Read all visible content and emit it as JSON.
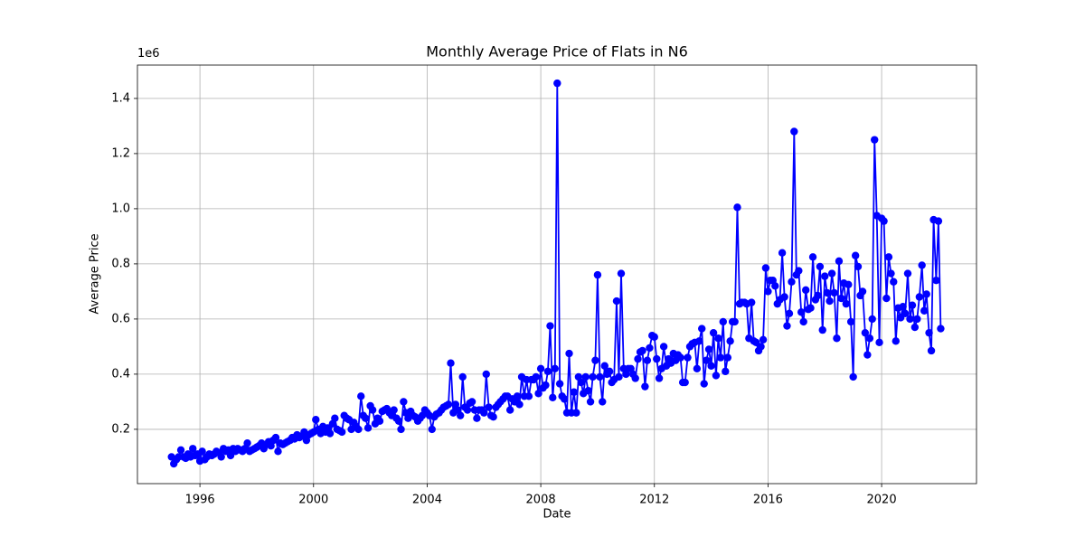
{
  "chart_data": {
    "type": "line",
    "title": "Monthly Average Price of Flats in N6",
    "x_label": "Date",
    "y_label": "Average Price",
    "y_offset_label": "1e6",
    "xlim": [
      1993.8,
      2023.34
    ],
    "xticks": [
      1996,
      2000,
      2004,
      2008,
      2012,
      2016,
      2020
    ],
    "ylim": [
      0.003,
      1.521
    ],
    "yticks": [
      0.2,
      0.4,
      0.6,
      0.8,
      {
        "value": 1,
        "label": "1.0"
      },
      1.2,
      1.4
    ],
    "grid": true,
    "series": [
      {
        "color": "#0000ff",
        "x": [
          1995.0,
          1995.08,
          1995.17,
          1995.25,
          1995.33,
          1995.42,
          1995.5,
          1995.58,
          1995.67,
          1995.75,
          1995.83,
          1995.92,
          1996.0,
          1996.08,
          1996.17,
          1996.25,
          1996.33,
          1996.42,
          1996.5,
          1996.58,
          1996.67,
          1996.75,
          1996.83,
          1996.92,
          1997.0,
          1997.08,
          1997.17,
          1997.25,
          1997.33,
          1997.42,
          1997.5,
          1997.58,
          1997.67,
          1997.75,
          1997.83,
          1997.92,
          1998.0,
          1998.08,
          1998.17,
          1998.25,
          1998.33,
          1998.42,
          1998.5,
          1998.58,
          1998.67,
          1998.75,
          1998.83,
          1998.92,
          1999.0,
          1999.08,
          1999.17,
          1999.25,
          1999.33,
          1999.42,
          1999.5,
          1999.58,
          1999.67,
          1999.75,
          1999.83,
          1999.92,
          2000.0,
          2000.08,
          2000.17,
          2000.25,
          2000.33,
          2000.42,
          2000.5,
          2000.58,
          2000.67,
          2000.75,
          2000.83,
          2000.92,
          2001.0,
          2001.08,
          2001.17,
          2001.25,
          2001.33,
          2001.42,
          2001.5,
          2001.58,
          2001.67,
          2001.75,
          2001.83,
          2001.92,
          2002.0,
          2002.08,
          2002.17,
          2002.25,
          2002.33,
          2002.42,
          2002.5,
          2002.58,
          2002.67,
          2002.75,
          2002.83,
          2002.92,
          2003.0,
          2003.08,
          2003.17,
          2003.25,
          2003.33,
          2003.42,
          2003.5,
          2003.58,
          2003.67,
          2003.75,
          2003.83,
          2003.92,
          2004.0,
          2004.08,
          2004.17,
          2004.25,
          2004.33,
          2004.42,
          2004.5,
          2004.58,
          2004.67,
          2004.75,
          2004.83,
          2004.92,
          2005.0,
          2005.08,
          2005.17,
          2005.25,
          2005.33,
          2005.42,
          2005.5,
          2005.58,
          2005.67,
          2005.75,
          2005.83,
          2005.92,
          2006.0,
          2006.08,
          2006.17,
          2006.25,
          2006.33,
          2006.42,
          2006.5,
          2006.58,
          2006.67,
          2006.75,
          2006.83,
          2006.92,
          2007.0,
          2007.08,
          2007.17,
          2007.25,
          2007.33,
          2007.42,
          2007.5,
          2007.58,
          2007.67,
          2007.75,
          2007.83,
          2007.92,
          2008.0,
          2008.08,
          2008.17,
          2008.25,
          2008.33,
          2008.42,
          2008.5,
          2008.58,
          2008.67,
          2008.75,
          2008.83,
          2008.92,
          2009.0,
          2009.08,
          2009.17,
          2009.25,
          2009.33,
          2009.42,
          2009.5,
          2009.58,
          2009.67,
          2009.75,
          2009.83,
          2009.92,
          2010.0,
          2010.08,
          2010.17,
          2010.25,
          2010.33,
          2010.42,
          2010.5,
          2010.58,
          2010.67,
          2010.75,
          2010.83,
          2010.92,
          2011.0,
          2011.08,
          2011.17,
          2011.25,
          2011.33,
          2011.42,
          2011.5,
          2011.58,
          2011.67,
          2011.75,
          2011.83,
          2011.92,
          2012.0,
          2012.08,
          2012.17,
          2012.25,
          2012.33,
          2012.42,
          2012.5,
          2012.58,
          2012.67,
          2012.75,
          2012.83,
          2012.92,
          2013.0,
          2013.08,
          2013.17,
          2013.25,
          2013.33,
          2013.42,
          2013.5,
          2013.58,
          2013.67,
          2013.75,
          2013.83,
          2013.92,
          2014.0,
          2014.08,
          2014.17,
          2014.25,
          2014.33,
          2014.42,
          2014.5,
          2014.58,
          2014.67,
          2014.75,
          2014.83,
          2014.92,
          2015.0,
          2015.08,
          2015.17,
          2015.25,
          2015.33,
          2015.42,
          2015.5,
          2015.58,
          2015.67,
          2015.75,
          2015.83,
          2015.92,
          2016.0,
          2016.08,
          2016.17,
          2016.25,
          2016.33,
          2016.42,
          2016.5,
          2016.58,
          2016.67,
          2016.75,
          2016.83,
          2016.92,
          2017.0,
          2017.08,
          2017.17,
          2017.25,
          2017.33,
          2017.42,
          2017.5,
          2017.58,
          2017.67,
          2017.75,
          2017.83,
          2017.92,
          2018.0,
          2018.08,
          2018.17,
          2018.25,
          2018.33,
          2018.42,
          2018.5,
          2018.58,
          2018.67,
          2018.75,
          2018.83,
          2018.92,
          2019.0,
          2019.08,
          2019.17,
          2019.25,
          2019.33,
          2019.42,
          2019.5,
          2019.58,
          2019.67,
          2019.75,
          2019.83,
          2019.92,
          2020.0,
          2020.08,
          2020.17,
          2020.25,
          2020.33,
          2020.42,
          2020.5,
          2020.58,
          2020.67,
          2020.75,
          2020.83,
          2020.92,
          2021.0,
          2021.08,
          2021.17,
          2021.25,
          2021.33,
          2021.42,
          2021.5,
          2021.58,
          2021.67,
          2021.75,
          2021.83,
          2021.92,
          2022.0,
          2022.08
        ],
        "values": [
          0.1,
          0.075,
          0.09,
          0.1,
          0.125,
          0.1,
          0.095,
          0.11,
          0.1,
          0.13,
          0.105,
          0.11,
          0.085,
          0.12,
          0.09,
          0.1,
          0.11,
          0.105,
          0.11,
          0.12,
          0.115,
          0.1,
          0.13,
          0.12,
          0.125,
          0.105,
          0.13,
          0.12,
          0.13,
          0.125,
          0.12,
          0.13,
          0.15,
          0.12,
          0.125,
          0.13,
          0.135,
          0.14,
          0.15,
          0.13,
          0.145,
          0.155,
          0.14,
          0.16,
          0.17,
          0.12,
          0.15,
          0.145,
          0.15,
          0.155,
          0.16,
          0.17,
          0.165,
          0.18,
          0.17,
          0.175,
          0.19,
          0.16,
          0.18,
          0.185,
          0.19,
          0.235,
          0.2,
          0.185,
          0.21,
          0.19,
          0.205,
          0.185,
          0.22,
          0.24,
          0.2,
          0.195,
          0.19,
          0.25,
          0.24,
          0.235,
          0.2,
          0.225,
          0.21,
          0.2,
          0.32,
          0.25,
          0.24,
          0.205,
          0.285,
          0.27,
          0.22,
          0.24,
          0.23,
          0.265,
          0.27,
          0.275,
          0.26,
          0.25,
          0.27,
          0.24,
          0.23,
          0.2,
          0.3,
          0.26,
          0.24,
          0.265,
          0.25,
          0.245,
          0.23,
          0.24,
          0.25,
          0.27,
          0.26,
          0.25,
          0.2,
          0.245,
          0.255,
          0.26,
          0.27,
          0.28,
          0.285,
          0.29,
          0.44,
          0.26,
          0.29,
          0.27,
          0.25,
          0.39,
          0.28,
          0.27,
          0.295,
          0.3,
          0.27,
          0.24,
          0.27,
          0.27,
          0.26,
          0.4,
          0.28,
          0.25,
          0.245,
          0.28,
          0.29,
          0.3,
          0.31,
          0.32,
          0.32,
          0.27,
          0.31,
          0.3,
          0.32,
          0.29,
          0.39,
          0.32,
          0.38,
          0.32,
          0.38,
          0.38,
          0.39,
          0.33,
          0.42,
          0.35,
          0.36,
          0.41,
          0.575,
          0.315,
          0.42,
          1.455,
          0.365,
          0.32,
          0.31,
          0.26,
          0.475,
          0.26,
          0.335,
          0.26,
          0.39,
          0.37,
          0.33,
          0.39,
          0.34,
          0.3,
          0.39,
          0.45,
          0.76,
          0.39,
          0.3,
          0.43,
          0.4,
          0.41,
          0.37,
          0.38,
          0.665,
          0.39,
          0.765,
          0.42,
          0.4,
          0.42,
          0.42,
          0.4,
          0.385,
          0.455,
          0.48,
          0.485,
          0.355,
          0.45,
          0.495,
          0.54,
          0.535,
          0.455,
          0.385,
          0.42,
          0.5,
          0.43,
          0.455,
          0.44,
          0.475,
          0.45,
          0.47,
          0.46,
          0.37,
          0.37,
          0.46,
          0.5,
          0.51,
          0.515,
          0.42,
          0.52,
          0.565,
          0.365,
          0.45,
          0.49,
          0.43,
          0.55,
          0.395,
          0.53,
          0.46,
          0.59,
          0.41,
          0.46,
          0.52,
          0.59,
          0.59,
          1.005,
          0.655,
          0.66,
          0.66,
          0.655,
          0.53,
          0.66,
          0.52,
          0.515,
          0.485,
          0.5,
          0.525,
          0.785,
          0.7,
          0.74,
          0.74,
          0.72,
          0.655,
          0.67,
          0.84,
          0.68,
          0.575,
          0.62,
          0.735,
          1.28,
          0.76,
          0.775,
          0.625,
          0.59,
          0.705,
          0.635,
          0.64,
          0.825,
          0.67,
          0.685,
          0.79,
          0.56,
          0.755,
          0.695,
          0.665,
          0.765,
          0.695,
          0.53,
          0.81,
          0.675,
          0.73,
          0.655,
          0.725,
          0.59,
          0.39,
          0.83,
          0.79,
          0.685,
          0.7,
          0.55,
          0.47,
          0.53,
          0.6,
          1.25,
          0.975,
          0.515,
          0.965,
          0.955,
          0.675,
          0.825,
          0.765,
          0.735,
          0.52,
          0.64,
          0.605,
          0.645,
          0.62,
          0.765,
          0.6,
          0.65,
          0.57,
          0.6,
          0.68,
          0.795,
          0.63,
          0.69,
          0.55,
          0.485,
          0.96,
          0.74,
          0.955,
          0.565
        ]
      }
    ]
  }
}
